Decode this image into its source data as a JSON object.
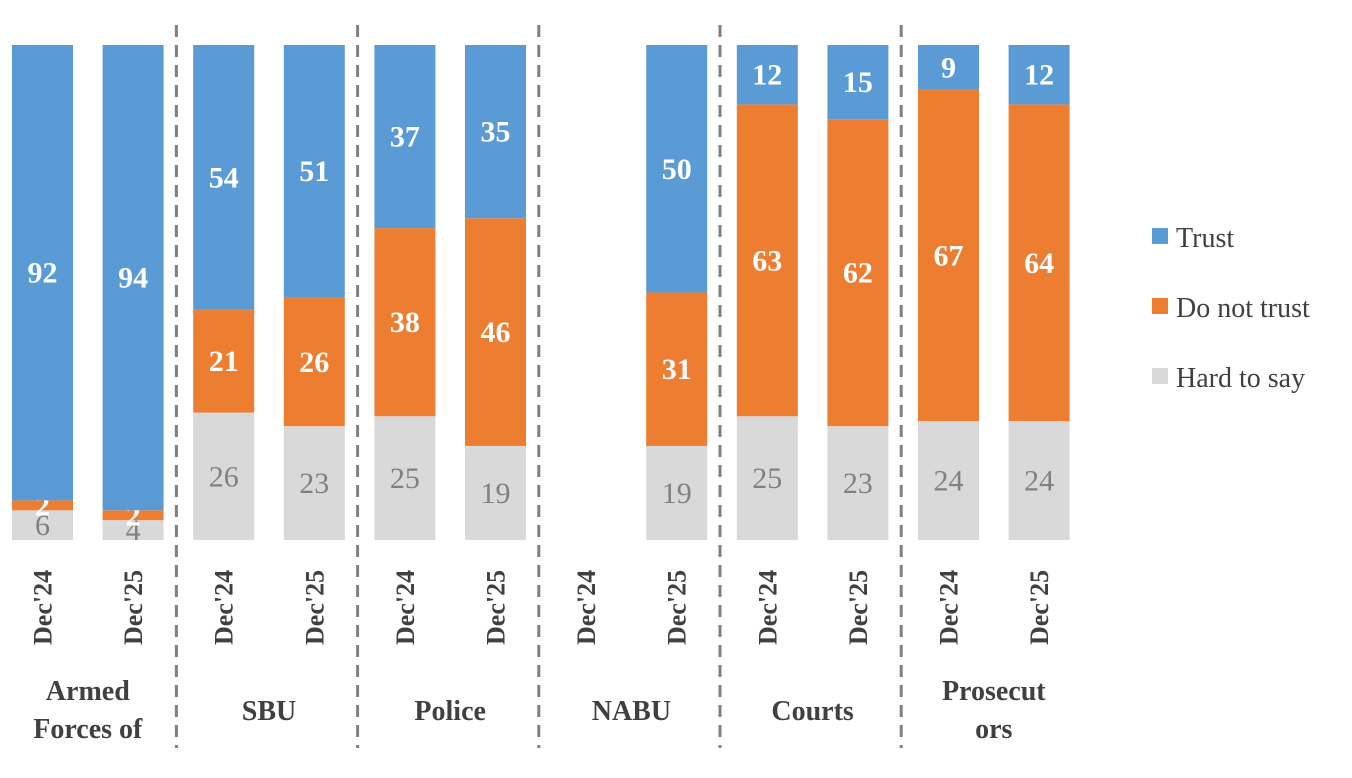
{
  "chart_data": {
    "type": "bar",
    "stacked": true,
    "title": "",
    "xlabel": "",
    "ylabel": "",
    "ylim": [
      0,
      100
    ],
    "grid": false,
    "legend_position": "right",
    "series_colors": {
      "Trust": "#5b9bd5",
      "Do not trust": "#ed7d31",
      "Hard to say": "#d9d9d9"
    },
    "label_colors": {
      "Trust": "#ffffff",
      "Do not trust": "#ffffff",
      "Hard to say": "#808080"
    },
    "groups": [
      {
        "name_lines": [
          "Armed",
          "Forces of"
        ],
        "categories": [
          "Dec'24",
          "Dec'25"
        ]
      },
      {
        "name_lines": [
          "SBU"
        ],
        "categories": [
          "Dec'24",
          "Dec'25"
        ]
      },
      {
        "name_lines": [
          "Police"
        ],
        "categories": [
          "Dec'24",
          "Dec'25"
        ]
      },
      {
        "name_lines": [
          "NABU"
        ],
        "categories": [
          "Dec'24",
          "Dec'25"
        ]
      },
      {
        "name_lines": [
          "Courts"
        ],
        "categories": [
          "Dec'24",
          "Dec'25"
        ]
      },
      {
        "name_lines": [
          "Prosecut",
          "ors"
        ],
        "categories": [
          "Dec'24",
          "Dec'25"
        ]
      }
    ],
    "categories": [
      "Dec'24",
      "Dec'25",
      "Dec'24",
      "Dec'25",
      "Dec'24",
      "Dec'25",
      "Dec'24",
      "Dec'25",
      "Dec'24",
      "Dec'25",
      "Dec'24",
      "Dec'25"
    ],
    "series": [
      {
        "name": "Hard to say",
        "values": [
          6,
          4,
          26,
          23,
          25,
          19,
          null,
          19,
          25,
          23,
          24,
          24
        ]
      },
      {
        "name": "Do not trust",
        "values": [
          2,
          2,
          21,
          26,
          38,
          46,
          null,
          31,
          63,
          62,
          67,
          64
        ]
      },
      {
        "name": "Trust",
        "values": [
          92,
          94,
          54,
          51,
          37,
          35,
          null,
          50,
          12,
          15,
          9,
          12
        ]
      }
    ]
  }
}
